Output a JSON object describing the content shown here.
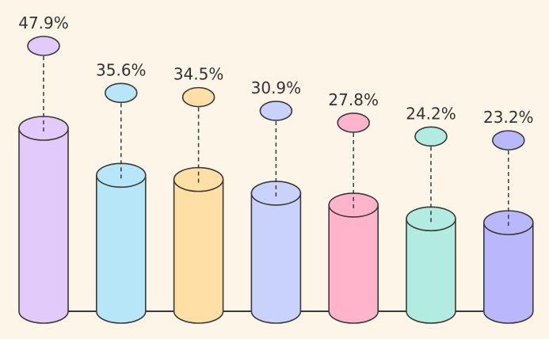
{
  "chart_data": {
    "type": "bar",
    "title": "",
    "xlabel": "",
    "ylabel": "",
    "categories": [],
    "values": [
      47.9,
      35.6,
      34.5,
      30.9,
      27.8,
      24.2,
      23.2
    ],
    "labels": [
      "47.9%",
      "35.6%",
      "34.5%",
      "30.9%",
      "27.8%",
      "24.2%",
      "23.2%"
    ],
    "colors": [
      "#e2cbfb",
      "#b7e6f8",
      "#fedfa6",
      "#c9d2fa",
      "#ffb4cb",
      "#b2ebdf",
      "#b9b8fc"
    ],
    "ylim": [
      0,
      50
    ],
    "grid": false,
    "legend": "none",
    "style": "3d-cylinder"
  }
}
